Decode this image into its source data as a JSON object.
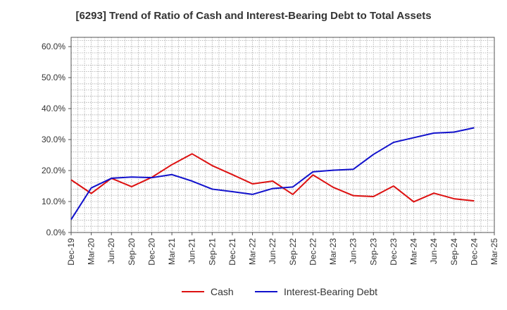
{
  "chart_data": {
    "type": "line",
    "title": "[6293]  Trend of Ratio of Cash and Interest-Bearing Debt to Total Assets",
    "xlabel": "",
    "ylabel": "",
    "ylim": [
      0,
      63
    ],
    "y_ticks": [
      "0.0%",
      "10.0%",
      "20.0%",
      "30.0%",
      "40.0%",
      "50.0%",
      "60.0%"
    ],
    "y_tick_values": [
      0,
      10,
      20,
      30,
      40,
      50,
      60
    ],
    "x_tick_labels": [
      "Dec-19",
      "Mar-20",
      "Jun-20",
      "Sep-20",
      "Dec-20",
      "Mar-21",
      "Jun-21",
      "Sep-21",
      "Dec-21",
      "Mar-22",
      "Jun-22",
      "Sep-22",
      "Dec-22",
      "Mar-23",
      "Jun-23",
      "Sep-23",
      "Dec-23",
      "Mar-24",
      "Jun-24",
      "Sep-24",
      "Dec-24",
      "Mar-25"
    ],
    "grid": true,
    "legend_position": "bottom",
    "series": [
      {
        "name": "Cash",
        "color": "#dd1111",
        "values": [
          17.0,
          12.6,
          17.5,
          14.8,
          17.8,
          21.9,
          25.4,
          21.6,
          18.7,
          15.7,
          16.6,
          12.3,
          18.6,
          14.6,
          11.9,
          11.6,
          15.0,
          9.9,
          12.7,
          10.9,
          10.2,
          null
        ]
      },
      {
        "name": "Interest-Bearing Debt",
        "color": "#1111cc",
        "values": [
          4.2,
          14.4,
          17.5,
          17.9,
          17.7,
          18.7,
          16.6,
          14.0,
          13.2,
          12.3,
          14.2,
          14.7,
          19.6,
          20.1,
          20.4,
          25.2,
          29.1,
          30.6,
          32.1,
          32.4,
          33.8,
          null
        ]
      }
    ]
  }
}
